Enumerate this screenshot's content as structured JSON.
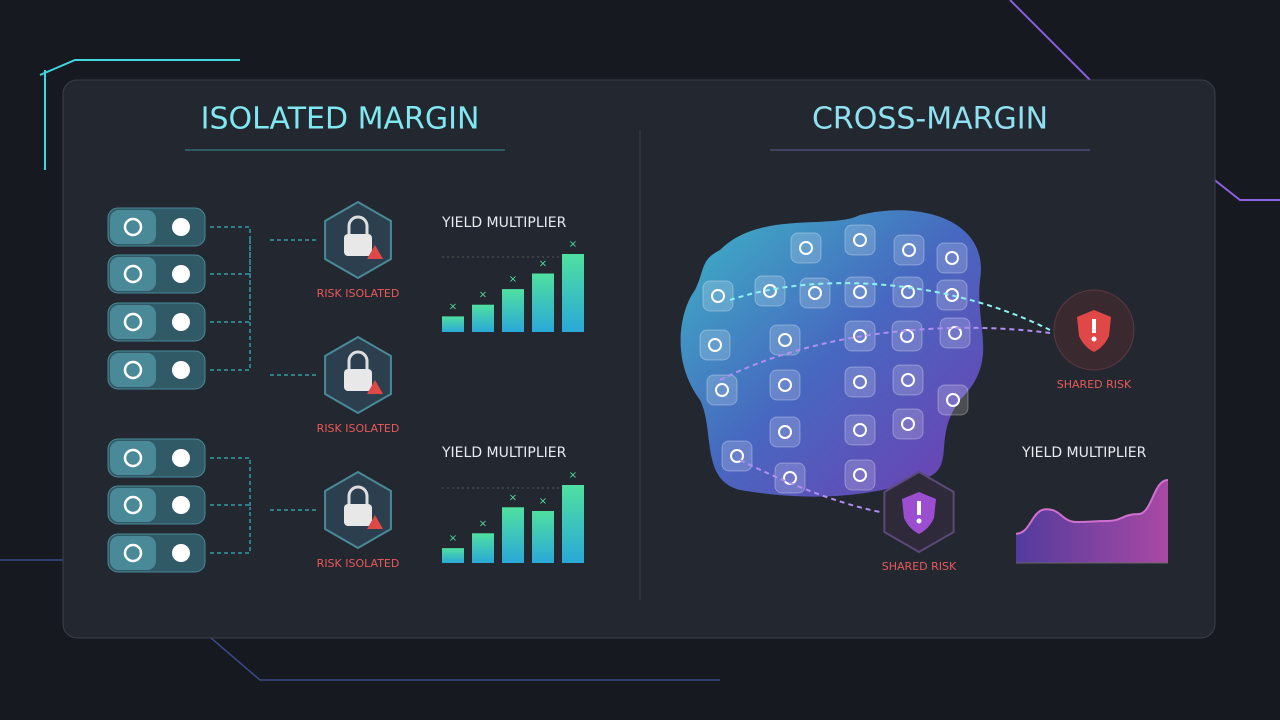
{
  "isolated": {
    "title": "ISOLATED MARGIN",
    "risk_labels": [
      "RISK ISOLATED",
      "RISK ISOLATED",
      "RISK ISOLATED"
    ],
    "charts": [
      {
        "title": "YIELD MULTIPLIER",
        "values": [
          2,
          3.5,
          5.5,
          7.5,
          10
        ]
      },
      {
        "title": "YIELD MULTIPLIER",
        "values": [
          2,
          4,
          7.5,
          7,
          10.5
        ]
      }
    ]
  },
  "cross": {
    "title": "CROSS-MARGIN",
    "risk_labels": [
      "SHARED RISK",
      "SHARED RISK"
    ],
    "chart": {
      "title": "YIELD MULTIPLIER",
      "values": [
        3,
        5.5,
        4.2,
        4.3,
        5,
        8.5
      ]
    }
  }
}
